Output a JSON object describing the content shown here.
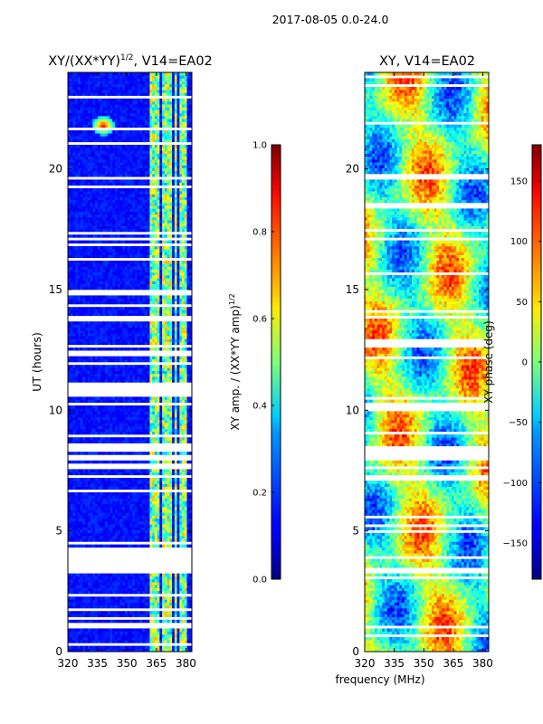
{
  "figure": {
    "suptitle": "2017-08-05 0.0-24.0",
    "shared_xlabel": "frequency (MHz)"
  },
  "chart_data": [
    {
      "type": "heatmap",
      "title_main": "XY/(XX*YY)",
      "title_exp": "1/2",
      "title_suffix": ", V14=EA02",
      "ylabel": "UT (hours)",
      "xlim": [
        320,
        383
      ],
      "ylim": [
        0,
        24
      ],
      "xticks": [
        320,
        335,
        350,
        365,
        380
      ],
      "yticks": [
        0,
        5,
        10,
        15,
        20
      ],
      "quantity": "amplitude",
      "flagged_hours": [
        [
          3.3,
          3.45
        ],
        [
          3.5,
          4.35
        ],
        [
          7.15,
          7.35
        ],
        [
          7.6,
          7.75
        ],
        [
          7.95,
          8.15
        ],
        [
          8.25,
          8.55
        ],
        [
          12.2,
          12.45
        ],
        [
          12.55,
          12.75
        ],
        [
          19.5,
          19.65
        ]
      ],
      "active_band_mhz": [
        [
          362,
          367
        ],
        [
          368.5,
          372.5
        ],
        [
          374,
          376
        ],
        [
          376.5,
          380
        ]
      ],
      "rfi_feature": {
        "freq_mhz": 338,
        "ut_hours": 21.8
      },
      "colorbar": {
        "label_main": "XY amp. / (XX*YY amp)",
        "label_exp": "1/2",
        "min": 0.0,
        "max": 1.0,
        "ticks": [
          "0.0",
          "0.2",
          "0.4",
          "0.6",
          "0.8",
          "1.0"
        ]
      }
    },
    {
      "type": "heatmap",
      "title": "XY, V14=EA02",
      "xlim": [
        320,
        383
      ],
      "ylim": [
        0,
        24
      ],
      "xticks": [
        320,
        335,
        350,
        365,
        380
      ],
      "yticks": [
        0,
        5,
        10,
        15,
        20
      ],
      "quantity": "phase",
      "flagged_hours": [
        [
          3.3,
          3.45
        ],
        [
          7.95,
          8.15
        ],
        [
          8.25,
          8.55
        ],
        [
          12.55,
          12.75
        ],
        [
          19.5,
          19.65
        ]
      ],
      "colorbar": {
        "label": "XY phase (deg)",
        "min": -180,
        "max": 180,
        "ticks": [
          "150",
          "100",
          "50",
          "0",
          "−50",
          "−100",
          "−150"
        ],
        "tick_values": [
          150,
          100,
          50,
          0,
          -50,
          -100,
          -150
        ]
      }
    }
  ]
}
